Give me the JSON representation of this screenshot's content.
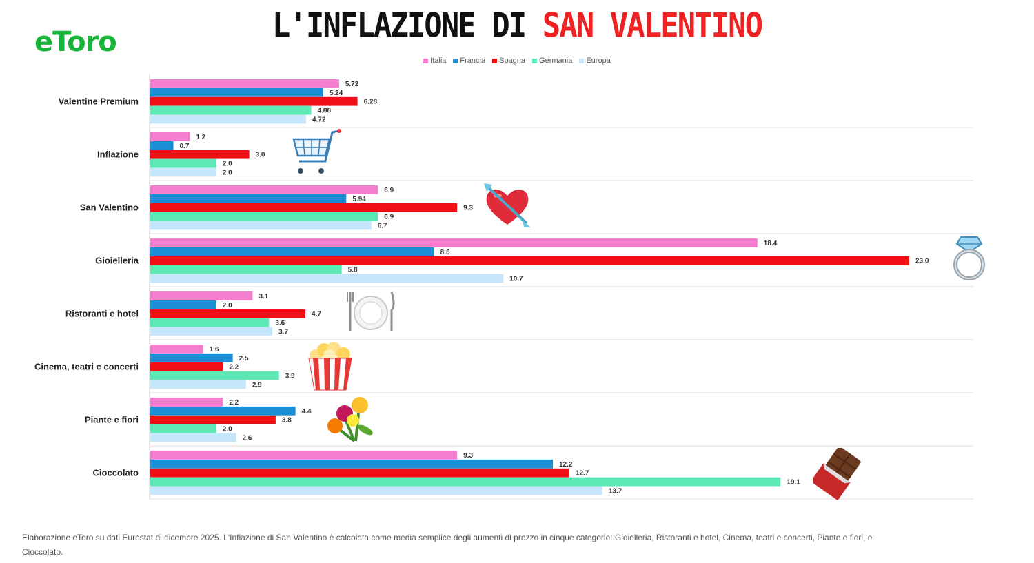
{
  "header": {
    "logo": "eToro",
    "title_prefix": "L'INFLAZIONE DI ",
    "title_accent": "SAN VALENTINO"
  },
  "footnote": "Elaborazione eToro su dati Eurostat di dicembre 2025. L'Inflazione di San Valentino è calcolata come media semplice degli aumenti di prezzo in cinque categorie: Gioielleria, Ristoranti e hotel, Cinema, teatri e concerti, Piante e fiori, e Cioccolato.",
  "colors": {
    "italia": "#f47fcf",
    "francia": "#1a8fd6",
    "spagna": "#f10f16",
    "germania": "#5ee8b5",
    "europa": "#c6e7fb",
    "logo": "#18b33b",
    "title_accent": "#ee2222"
  },
  "decorations": [
    "shopping-cart-icon",
    "heart-arrow-icon",
    "diamond-ring-icon",
    "plate-cutlery-icon",
    "popcorn-icon",
    "flowers-icon",
    "chocolate-bar-icon"
  ],
  "chart_data": {
    "type": "bar",
    "orientation": "horizontal",
    "categories": [
      "Valentine Premium",
      "Inflazione",
      "San Valentino",
      "Gioielleria",
      "Ristoranti e hotel",
      "Cinema, teatri e concerti",
      "Piante e fiori",
      "Cioccolato"
    ],
    "series": [
      {
        "name": "Italia",
        "color": "#f47fcf",
        "values": [
          5.72,
          1.2,
          6.9,
          18.4,
          3.1,
          1.6,
          2.2,
          9.3
        ],
        "labels": [
          "5.72",
          "1.2",
          "6.9",
          "18.4",
          "3.1",
          "1.6",
          "2.2",
          "9.3"
        ]
      },
      {
        "name": "Francia",
        "color": "#1a8fd6",
        "values": [
          5.24,
          0.7,
          5.94,
          8.6,
          2.0,
          2.5,
          4.4,
          12.2
        ],
        "labels": [
          "5.24",
          "0.7",
          "5.94",
          "8.6",
          "2.0",
          "2.5",
          "4.4",
          "12.2"
        ]
      },
      {
        "name": "Spagna",
        "color": "#f10f16",
        "values": [
          6.28,
          3.0,
          9.3,
          23.0,
          4.7,
          2.2,
          3.8,
          12.7
        ],
        "labels": [
          "6.28",
          "3.0",
          "9.3",
          "23.0",
          "4.7",
          "2.2",
          "3.8",
          "12.7"
        ]
      },
      {
        "name": "Germania",
        "color": "#5ee8b5",
        "values": [
          4.88,
          2.0,
          6.9,
          5.8,
          3.6,
          3.9,
          2.0,
          19.1
        ],
        "labels": [
          "4.88",
          "2.0",
          "6.9",
          "5.8",
          "3.6",
          "3.9",
          "2.0",
          "19.1"
        ]
      },
      {
        "name": "Europa",
        "color": "#c6e7fb",
        "values": [
          4.72,
          2.0,
          6.7,
          10.7,
          3.7,
          2.9,
          2.6,
          13.7
        ],
        "labels": [
          "4.72",
          "2.0",
          "6.7",
          "10.7",
          "3.7",
          "2.9",
          "2.6",
          "13.7"
        ]
      }
    ],
    "xlim": [
      0,
      25
    ],
    "grid": false,
    "legend_position": "top"
  }
}
